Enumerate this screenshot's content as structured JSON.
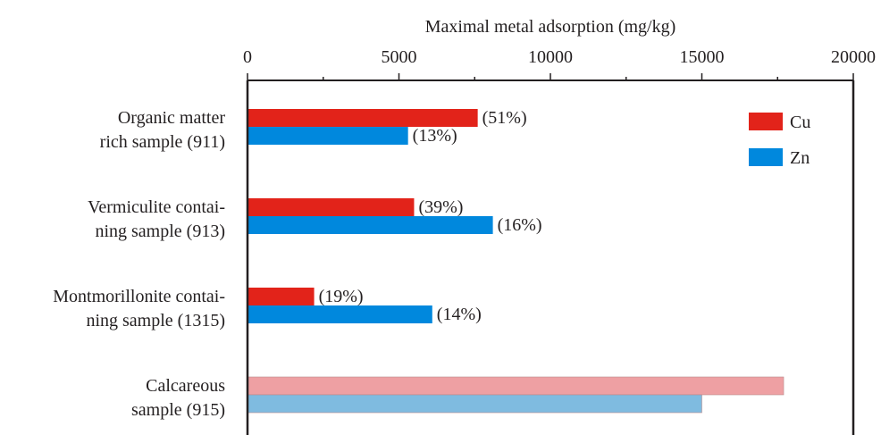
{
  "chart_data": {
    "type": "bar",
    "orientation": "horizontal",
    "title": "",
    "xlabel": "Maximal metal adsorption (mg/kg)",
    "ylabel": "",
    "xlim": [
      0,
      20000
    ],
    "x_ticks": [
      "0",
      "5000",
      "10000",
      "15000",
      "20000"
    ],
    "axis_position": "top",
    "grid": false,
    "legend_position": "top-right",
    "categories": [
      [
        "Organic matter",
        "rich sample (911)"
      ],
      [
        "Vermiculite contai-",
        "ning sample (913)"
      ],
      [
        "Montmorillonite contai-",
        "ning sample (1315)"
      ],
      [
        "Calcareous",
        "sample (915)"
      ]
    ],
    "series": [
      {
        "name": "Cu",
        "color": "#e2231a",
        "faded_color": "#eea0a3",
        "values": [
          7600,
          5500,
          2200,
          17700
        ],
        "labels": [
          "(51%)",
          "(39%)",
          "(19%)",
          ""
        ],
        "faded": [
          false,
          false,
          false,
          true
        ]
      },
      {
        "name": "Zn",
        "color": "#0088dd",
        "faded_color": "#7fbbe0",
        "values": [
          5300,
          8100,
          6100,
          15000
        ],
        "labels": [
          "(13%)",
          "(16%)",
          "(14%)",
          ""
        ],
        "faded": [
          false,
          false,
          false,
          true
        ]
      }
    ]
  }
}
